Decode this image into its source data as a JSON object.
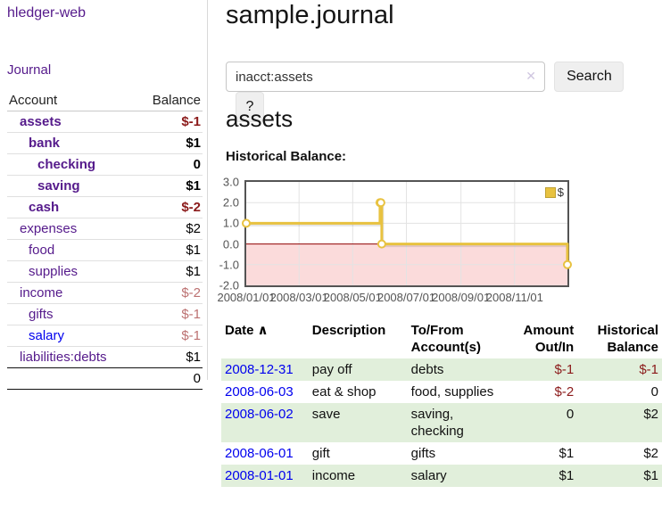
{
  "sidebar": {
    "brand": "hledger-web",
    "journal_label": "Journal",
    "accounts_table": {
      "headers": {
        "account": "Account",
        "balance": "Balance"
      },
      "rows": [
        {
          "name": "assets",
          "depth": 1,
          "bold": true,
          "balance": "$-1"
        },
        {
          "name": "bank",
          "depth": 2,
          "bold": true,
          "balance": "$1"
        },
        {
          "name": "checking",
          "depth": 3,
          "bold": true,
          "balance": "0"
        },
        {
          "name": "saving",
          "depth": 3,
          "bold": true,
          "balance": "$1"
        },
        {
          "name": "cash",
          "depth": 2,
          "bold": true,
          "balance": "$-2"
        },
        {
          "name": "expenses",
          "depth": 1,
          "bold": false,
          "balance": "$2"
        },
        {
          "name": "food",
          "depth": 2,
          "bold": false,
          "balance": "$1"
        },
        {
          "name": "supplies",
          "depth": 2,
          "bold": false,
          "balance": "$1"
        },
        {
          "name": "income",
          "depth": 1,
          "bold": false,
          "balance": "$-2"
        },
        {
          "name": "gifts",
          "depth": 2,
          "bold": false,
          "balance": "$-1"
        },
        {
          "name": "salary",
          "depth": 2,
          "bold": false,
          "balance": "$-1",
          "blue": true
        },
        {
          "name": "liabilities:debts",
          "depth": 1,
          "bold": false,
          "balance": "$1"
        }
      ],
      "total": "0"
    }
  },
  "main": {
    "title": "sample.journal",
    "search": {
      "value": "inacct:assets",
      "clear_icon": "✕",
      "button_label": "Search",
      "help_label": "?"
    },
    "section_title": "assets",
    "chart_label": "Historical Balance:",
    "register_table": {
      "headers": {
        "date": "Date",
        "sort_icon": "∧",
        "description": "Description",
        "accounts": "To/From Account(s)",
        "amount": "Amount Out/In",
        "balance": "Historical Balance"
      },
      "rows": [
        {
          "date": "2008-12-31",
          "description": "pay off",
          "accounts": "debts",
          "amount": "$-1",
          "balance": "$-1"
        },
        {
          "date": "2008-06-03",
          "description": "eat & shop",
          "accounts": "food, supplies",
          "amount": "$-2",
          "balance": "0"
        },
        {
          "date": "2008-06-02",
          "description": "save",
          "accounts": "saving, checking",
          "amount": "0",
          "balance": "$2"
        },
        {
          "date": "2008-06-01",
          "description": "gift",
          "accounts": "gifts",
          "amount": "$1",
          "balance": "$2"
        },
        {
          "date": "2008-01-01",
          "description": "income",
          "accounts": "salary",
          "amount": "$1",
          "balance": "$1"
        }
      ]
    }
  },
  "chart_data": {
    "type": "line",
    "step": true,
    "title": "Historical Balance",
    "series": [
      {
        "name": "$",
        "color": "#e8c240",
        "points": [
          [
            "2008-01-01",
            1
          ],
          [
            "2008-06-01",
            2
          ],
          [
            "2008-06-02",
            2
          ],
          [
            "2008-06-03",
            0
          ],
          [
            "2008-12-31",
            -1
          ]
        ]
      }
    ],
    "xlim": [
      "2008-01-01",
      "2008-12-31"
    ],
    "ylim": [
      -2,
      3
    ],
    "yticks": [
      "3.0",
      "2.0",
      "1.0",
      "0.0",
      "-1.0",
      "-2.0"
    ],
    "xticks": [
      "2008/01/01",
      "2008/03/01",
      "2008/05/01",
      "2008/07/01",
      "2008/09/01",
      "2008/11/01"
    ],
    "grid": true,
    "legend_position": "top-right",
    "negative_region_fill": "#fbdbdb",
    "zero_line_color": "#900000"
  },
  "colors": {
    "link_purple": "#551a8b",
    "link_blue": "#0000ee",
    "negative_strong": "#8b1a1a",
    "negative_soft": "#bc7171",
    "row_stripe_green": "#e1efdb",
    "chart_line_gold": "#e8c240",
    "negative_region_pink": "#fbdbdb",
    "zero_line_red": "#900000",
    "plot_border_gray": "#545454"
  }
}
